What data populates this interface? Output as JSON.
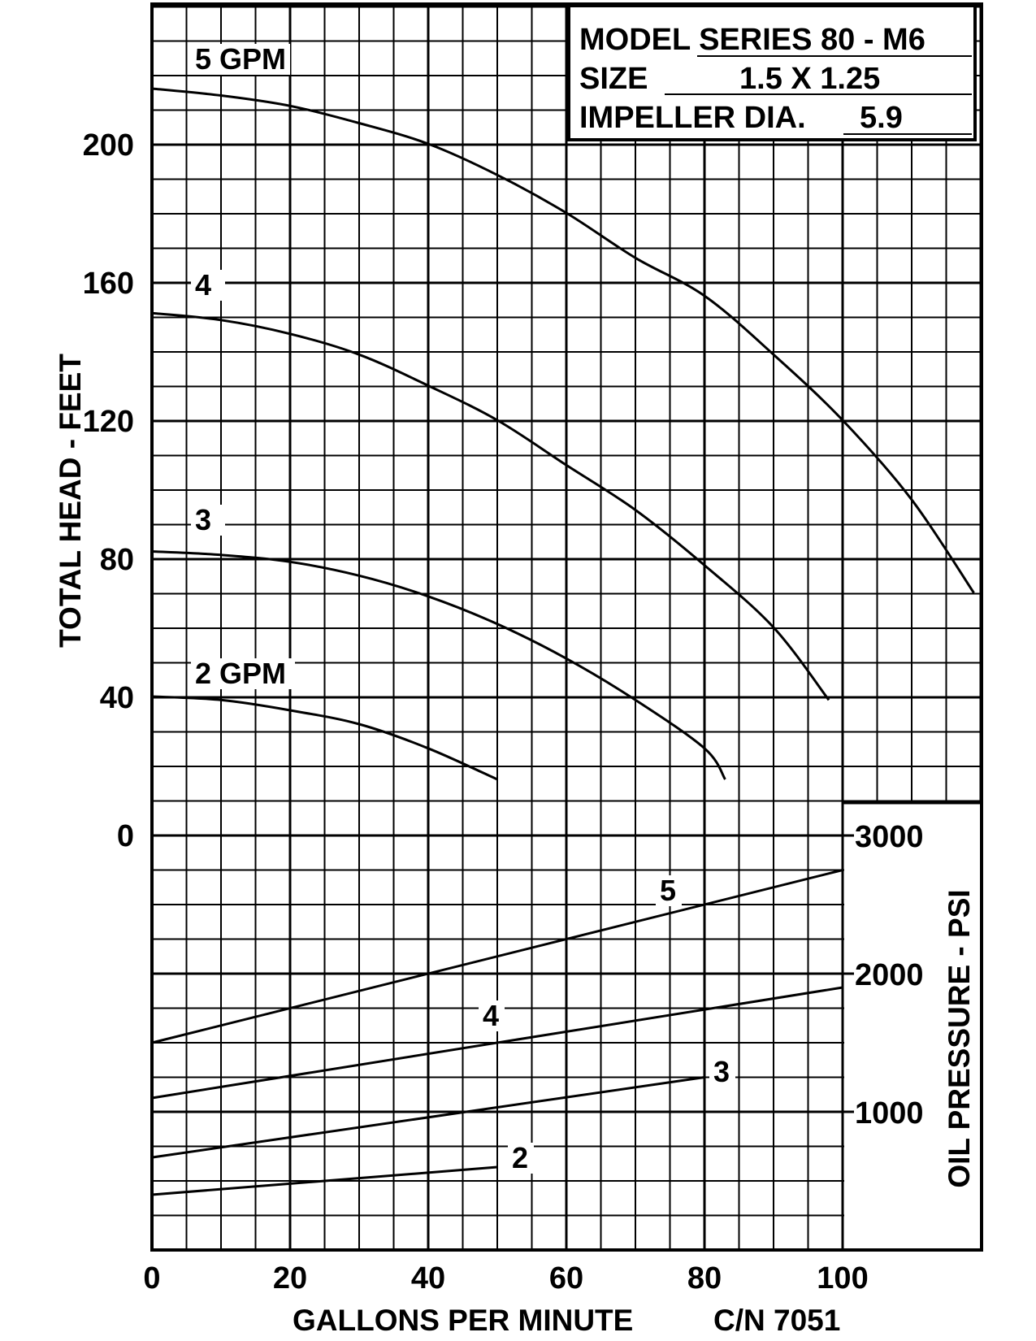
{
  "chart_data": {
    "type": "line",
    "xlabel": "GALLONS PER MINUTE",
    "catalog_number": "C/N 7051",
    "ylabel_left": "TOTAL HEAD - FEET",
    "ylabel_right": "OIL PRESSURE - PSI",
    "x_ticks": [
      "0",
      "20",
      "40",
      "60",
      "80",
      "100"
    ],
    "y_left_ticks": [
      "0",
      "40",
      "80",
      "120",
      "160",
      "200"
    ],
    "y_right_ticks": [
      "1000",
      "2000",
      "3000"
    ],
    "xlim": [
      0,
      120
    ],
    "ylim_head": [
      0,
      240
    ],
    "ylim_pressure": [
      -1000,
      3000
    ],
    "grid": true,
    "info_box": {
      "model_label": "MODEL SERIES 80 - M6",
      "size_label": "SIZE",
      "size_value": "1.5 X 1.25",
      "impeller_label": "IMPELLER DIA.",
      "impeller_value": "5.9"
    },
    "head_series": [
      {
        "name": "5 GPM",
        "label": "5 GPM",
        "points": [
          [
            0,
            216
          ],
          [
            10,
            214
          ],
          [
            20,
            211
          ],
          [
            30,
            206
          ],
          [
            40,
            200
          ],
          [
            50,
            191
          ],
          [
            60,
            180
          ],
          [
            70,
            167
          ],
          [
            80,
            156
          ],
          [
            90,
            139
          ],
          [
            100,
            120
          ],
          [
            110,
            97
          ],
          [
            119,
            70
          ]
        ]
      },
      {
        "name": "4",
        "label": "4",
        "points": [
          [
            0,
            151
          ],
          [
            10,
            149
          ],
          [
            20,
            145
          ],
          [
            30,
            139
          ],
          [
            40,
            130
          ],
          [
            50,
            120
          ],
          [
            60,
            107
          ],
          [
            70,
            94
          ],
          [
            80,
            78
          ],
          [
            90,
            60
          ],
          [
            98,
            39
          ]
        ]
      },
      {
        "name": "3",
        "label": "3",
        "points": [
          [
            0,
            82
          ],
          [
            10,
            81
          ],
          [
            20,
            79
          ],
          [
            30,
            75
          ],
          [
            40,
            69
          ],
          [
            50,
            61
          ],
          [
            60,
            51
          ],
          [
            70,
            39
          ],
          [
            80,
            25
          ],
          [
            83,
            16
          ]
        ]
      },
      {
        "name": "2 GPM",
        "label": "2 GPM",
        "points": [
          [
            0,
            40
          ],
          [
            10,
            39
          ],
          [
            20,
            36
          ],
          [
            30,
            32
          ],
          [
            40,
            25
          ],
          [
            50,
            16
          ]
        ]
      }
    ],
    "pressure_series": [
      {
        "name": "5",
        "label": "5",
        "points": [
          [
            0,
            1500
          ],
          [
            100,
            2750
          ]
        ]
      },
      {
        "name": "4",
        "label": "4",
        "points": [
          [
            0,
            1100
          ],
          [
            100,
            1900
          ]
        ]
      },
      {
        "name": "3",
        "label": "3",
        "points": [
          [
            0,
            670
          ],
          [
            80,
            1250
          ]
        ]
      },
      {
        "name": "2",
        "label": "2",
        "points": [
          [
            0,
            400
          ],
          [
            50,
            600
          ]
        ]
      }
    ]
  }
}
